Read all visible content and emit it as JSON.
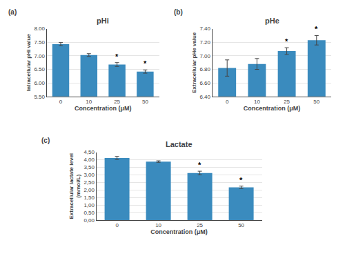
{
  "chart_data": [
    {
      "type": "bar",
      "title": "pHi",
      "panel_label": "(a)",
      "xlabel": "Concentration (μM)",
      "ylabel": "Intracellular pHi value",
      "categories": [
        "0",
        "10",
        "25",
        "50"
      ],
      "values": [
        7.43,
        7.03,
        6.68,
        6.42
      ],
      "errors": [
        0.06,
        0.05,
        0.07,
        0.06
      ],
      "color": "#3A8BBE",
      "ylim": [
        5.5,
        8.0
      ],
      "yticks": [
        {
          "value": 5.5,
          "label": "5.50"
        },
        {
          "value": 6.0,
          "label": "6.00"
        },
        {
          "value": 6.5,
          "label": "6.50"
        },
        {
          "value": 7.0,
          "label": "7.00"
        },
        {
          "value": 7.5,
          "label": "7.50"
        },
        {
          "value": 8.0,
          "label": "8.00"
        }
      ],
      "grid": true,
      "annotations": [
        {
          "category": "25",
          "text": "*"
        },
        {
          "category": "50",
          "text": "*"
        }
      ]
    },
    {
      "type": "bar",
      "title": "pHe",
      "panel_label": "(b)",
      "xlabel": "Concentration (μM)",
      "ylabel": "Extracellular pHe value",
      "categories": [
        "0",
        "10",
        "25",
        "50"
      ],
      "values": [
        6.82,
        6.88,
        7.07,
        7.23
      ],
      "errors": [
        0.12,
        0.08,
        0.05,
        0.07
      ],
      "color": "#3A8BBE",
      "ylim": [
        6.4,
        7.4
      ],
      "yticks": [
        {
          "value": 6.4,
          "label": "6.40"
        },
        {
          "value": 6.6,
          "label": "6.60"
        },
        {
          "value": 6.8,
          "label": "6.80"
        },
        {
          "value": 7.0,
          "label": "7.00"
        },
        {
          "value": 7.2,
          "label": "7.20"
        },
        {
          "value": 7.4,
          "label": "7.40"
        }
      ],
      "grid": true,
      "annotations": [
        {
          "category": "25",
          "text": "*"
        },
        {
          "category": "50",
          "text": "*"
        }
      ]
    },
    {
      "type": "bar",
      "title": "Lactate",
      "panel_label": "(c)",
      "xlabel": "Concentration (μM)",
      "ylabel": "Extracellular lactate level\n(mmol/L)",
      "categories": [
        "0",
        "10",
        "25",
        "50"
      ],
      "values": [
        4.12,
        3.88,
        3.12,
        2.17
      ],
      "errors": [
        0.1,
        0.05,
        0.12,
        0.08
      ],
      "color": "#3A8BBE",
      "ylim": [
        0.0,
        4.5
      ],
      "yticks": [
        {
          "value": 0.0,
          "label": "0,00"
        },
        {
          "value": 0.5,
          "label": "0,50"
        },
        {
          "value": 1.0,
          "label": "1,00"
        },
        {
          "value": 1.5,
          "label": "1,50"
        },
        {
          "value": 2.0,
          "label": "2,00"
        },
        {
          "value": 2.5,
          "label": "2,50"
        },
        {
          "value": 3.0,
          "label": "3,00"
        },
        {
          "value": 3.5,
          "label": "3,50"
        },
        {
          "value": 4.0,
          "label": "4,00"
        },
        {
          "value": 4.5,
          "label": "4,50"
        }
      ],
      "grid": true,
      "annotations": [
        {
          "category": "25",
          "text": "*"
        },
        {
          "category": "50",
          "text": "*"
        }
      ]
    }
  ]
}
